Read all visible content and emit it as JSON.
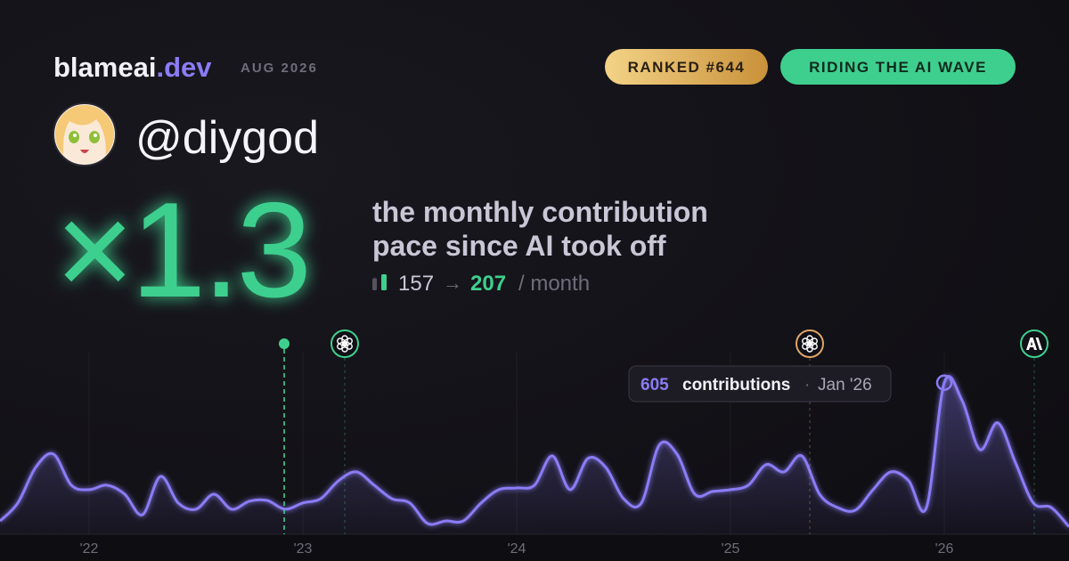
{
  "header": {
    "brand": "blameai",
    "brand_suffix": ".dev",
    "period": "AUG 2026",
    "badges": [
      "RANKED #644",
      "RIDING THE AI WAVE"
    ]
  },
  "profile": {
    "handle": "@diygod"
  },
  "headline": {
    "multiplier": "×1.3",
    "description": [
      "the monthly contribution",
      "pace since AI took off"
    ],
    "before": 157,
    "arrow": "→",
    "after": 207,
    "unit": "/ month"
  },
  "chart_data": {
    "type": "area",
    "color": "#8b7cf6",
    "categories": [
      null,
      null,
      null,
      null,
      null,
      "'22",
      null,
      null,
      null,
      null,
      null,
      null,
      null,
      null,
      null,
      null,
      null,
      "'23",
      null,
      null,
      null,
      null,
      null,
      null,
      null,
      null,
      null,
      null,
      null,
      "'24",
      null,
      null,
      null,
      null,
      null,
      null,
      null,
      null,
      null,
      null,
      null,
      "'25",
      null,
      null,
      null,
      null,
      null,
      null,
      null,
      null,
      null,
      null,
      null,
      "'26",
      null,
      null,
      null,
      null,
      null,
      null,
      null
    ],
    "values": [
      53,
      125,
      267,
      320,
      196,
      178,
      196,
      160,
      78,
      231,
      125,
      100,
      160,
      100,
      132,
      135,
      100,
      125,
      142,
      214,
      249,
      196,
      142,
      125,
      43,
      53,
      53,
      125,
      178,
      185,
      196,
      313,
      178,
      303,
      267,
      142,
      125,
      356,
      320,
      160,
      171,
      178,
      196,
      278,
      249,
      313,
      160,
      107,
      96,
      178,
      249,
      214,
      107,
      605,
      534,
      338,
      445,
      285,
      125,
      107,
      30
    ],
    "ylim": [
      0,
      700
    ],
    "grid": true,
    "events": [
      {
        "x": 15.95,
        "icon": "dot",
        "color": "#3ecf8e"
      },
      {
        "x": 19.35,
        "icon": "openai",
        "color": "#3ecf8e"
      },
      {
        "x": 45.45,
        "icon": "openai",
        "color": "#e0a56a"
      },
      {
        "x": 58.05,
        "icon": "anthropic",
        "color": "#3ecf8e"
      }
    ],
    "tooltip": {
      "index": 53,
      "unit": "contributions",
      "separator": "·",
      "date": "Jan '26"
    }
  }
}
